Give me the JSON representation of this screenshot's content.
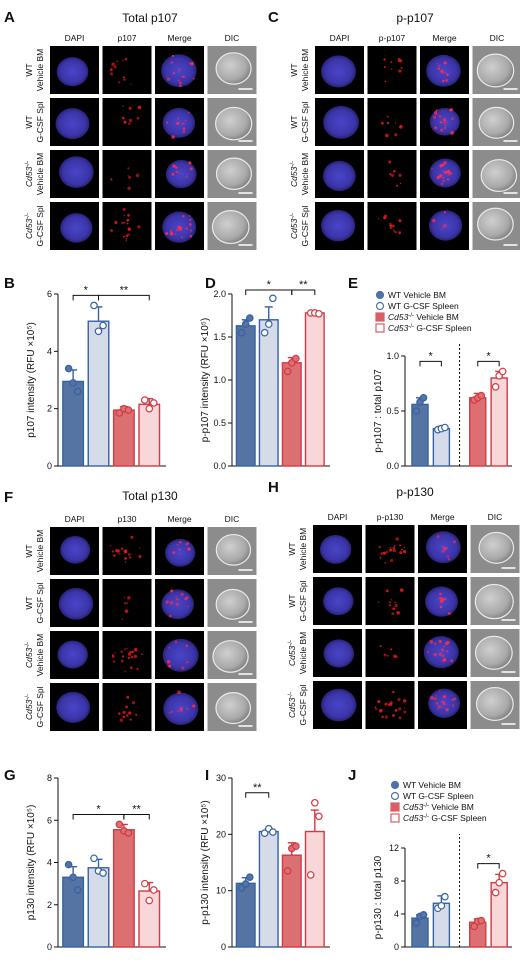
{
  "panel_letters": [
    "A",
    "B",
    "C",
    "D",
    "E",
    "F",
    "G",
    "H",
    "I",
    "J"
  ],
  "image_panels": [
    {
      "letter": "A",
      "title": "Total p107",
      "columns": [
        "DAPI",
        "p107",
        "Merge",
        "DIC"
      ],
      "rows": [
        [
          "WT",
          "Vehicle BM"
        ],
        [
          "WT",
          "G-CSF Spl"
        ],
        [
          "Cd53 -/-",
          "Vehicle BM"
        ],
        [
          "Cd53 -/-",
          "G-CSF Spl"
        ]
      ]
    },
    {
      "letter": "C",
      "title": "p-p107",
      "columns": [
        "DAPI",
        "p-p107",
        "Merge",
        "DIC"
      ],
      "rows": [
        [
          "WT",
          "Vehicle BM"
        ],
        [
          "WT",
          "G-CSF Spl"
        ],
        [
          "Cd53 -/-",
          "Vehicle BM"
        ],
        [
          "Cd53 -/-",
          "G-CSF Spl"
        ]
      ]
    },
    {
      "letter": "F",
      "title": "Total p130",
      "columns": [
        "DAPI",
        "p130",
        "Merge",
        "DIC"
      ],
      "rows": [
        [
          "WT",
          "Vehicle BM"
        ],
        [
          "WT",
          "G-CSF Spl"
        ],
        [
          "Cd53 -/-",
          "Vehicle BM"
        ],
        [
          "Cd53 -/-",
          "G-CSF Spl"
        ]
      ]
    },
    {
      "letter": "H",
      "title": "p-p130",
      "columns": [
        "DAPI",
        "p-p130",
        "Merge",
        "DIC"
      ],
      "rows": [
        [
          "WT",
          "Vehicle BM"
        ],
        [
          "WT",
          "G-CSF Spl"
        ],
        [
          "Cd53 -/-",
          "Vehicle BM"
        ],
        [
          "Cd53 -/-",
          "G-CSF Spl"
        ]
      ]
    }
  ],
  "legend": {
    "E": [
      {
        "text": "WT Vehicle BM",
        "color": "#4f73a8",
        "fill": true
      },
      {
        "text": "WT G-CSF Spleen",
        "color": "#4f73a8",
        "fill": false
      },
      {
        "text": "Cd53-/- Vehicle BM",
        "color": "#d95f66",
        "fill": true
      },
      {
        "text": "Cd53-/- G-CSF Spleen",
        "color": "#d95f66",
        "fill": false
      }
    ],
    "J": [
      {
        "text": "WT Vehicle BM",
        "color": "#4f73a8",
        "fill": true
      },
      {
        "text": "WT G-CSF Spleen",
        "color": "#4f73a8",
        "fill": false
      },
      {
        "text": "Cd53-/- Vehicle BM",
        "color": "#d95f66",
        "fill": true
      },
      {
        "text": "Cd53-/- G-CSF Spleen",
        "color": "#d95f66",
        "fill": false
      }
    ]
  },
  "colors": {
    "wt_bm": "#5573a3",
    "wt_spl": "#d5dbe9",
    "ko_bm": "#db6f72",
    "ko_spl": "#f7d7d8",
    "wt_edge": "#3562a3",
    "ko_edge": "#d23a44"
  },
  "chart_data": [
    {
      "panel": "B",
      "type": "bar",
      "ylabel": "p107 intensity (RFU ×10⁵)",
      "ylim": [
        0,
        6
      ],
      "yticks": [
        0,
        2,
        4,
        6
      ],
      "categories": [
        "WT Vehicle BM",
        "WT G-CSF Spleen",
        "Cd53-/- Vehicle BM",
        "Cd53-/- G-CSF Spleen"
      ],
      "values": [
        2.95,
        5.05,
        1.95,
        2.15
      ],
      "errors": [
        0.4,
        0.5,
        0.12,
        0.2
      ],
      "points": [
        [
          3.4,
          2.9,
          2.6
        ],
        [
          5.6,
          4.7,
          4.9
        ],
        [
          1.85,
          2.0,
          1.95
        ],
        [
          2.3,
          2.0,
          2.2
        ]
      ],
      "significance": [
        {
          "from": 0,
          "to": 1,
          "label": "*"
        },
        {
          "from": 1,
          "to": 3,
          "label": "**"
        }
      ]
    },
    {
      "panel": "D",
      "type": "bar",
      "ylabel": "p-p107 intensity (RFU ×10⁵)",
      "ylim": [
        0,
        2.0
      ],
      "yticks": [
        0.0,
        0.5,
        1.0,
        1.5,
        2.0
      ],
      "categories": [
        "WT Vehicle BM",
        "WT G-CSF Spleen",
        "Cd53-/- Vehicle BM",
        "Cd53-/- G-CSF Spleen"
      ],
      "values": [
        1.63,
        1.7,
        1.2,
        1.78
      ],
      "errors": [
        0.07,
        0.15,
        0.06,
        0.02
      ],
      "points": [
        [
          1.55,
          1.65,
          1.72
        ],
        [
          1.55,
          1.65,
          1.95
        ],
        [
          1.1,
          1.2,
          1.25
        ],
        [
          1.78,
          1.78,
          1.77
        ]
      ],
      "significance": [
        {
          "from": 0,
          "to": 2,
          "label": "*"
        },
        {
          "from": 2,
          "to": 3,
          "label": "**"
        }
      ]
    },
    {
      "panel": "E",
      "type": "bar",
      "ylabel": "p-p107 : total p107",
      "ylim": [
        0,
        1.0
      ],
      "yticks": [
        0.0,
        0.5,
        1.0
      ],
      "categories": [
        "WT Vehicle BM",
        "WT G-CSF Spleen",
        "Cd53-/- Vehicle BM",
        "Cd53-/- G-CSF Spleen"
      ],
      "values": [
        0.56,
        0.34,
        0.62,
        0.8
      ],
      "errors": [
        0.06,
        0.02,
        0.04,
        0.06
      ],
      "points": [
        [
          0.5,
          0.58,
          0.62
        ],
        [
          0.33,
          0.34,
          0.35
        ],
        [
          0.6,
          0.62,
          0.64
        ],
        [
          0.72,
          0.82,
          0.86
        ]
      ],
      "significance": [
        {
          "from": 0,
          "to": 1,
          "label": "*"
        },
        {
          "from": 2,
          "to": 3,
          "label": "*"
        }
      ]
    },
    {
      "panel": "G",
      "type": "bar",
      "ylabel": "p130 intensity (RFU ×10⁵)",
      "ylim": [
        0,
        8
      ],
      "yticks": [
        0,
        2,
        4,
        6,
        8
      ],
      "categories": [
        "WT Vehicle BM",
        "WT G-CSF Spleen",
        "Cd53-/- Vehicle BM",
        "Cd53-/- G-CSF Spleen"
      ],
      "values": [
        3.3,
        3.75,
        5.55,
        2.65
      ],
      "errors": [
        0.5,
        0.4,
        0.25,
        0.4
      ],
      "points": [
        [
          3.9,
          3.3,
          2.7
        ],
        [
          4.2,
          3.6,
          3.5
        ],
        [
          5.8,
          5.5,
          5.4
        ],
        [
          3.0,
          2.2,
          2.7
        ]
      ],
      "significance": [
        {
          "from": 0,
          "to": 2,
          "label": "*"
        },
        {
          "from": 2,
          "to": 3,
          "label": "**"
        }
      ]
    },
    {
      "panel": "I",
      "type": "bar",
      "ylabel": "p-p130 intensity (RFU ×10⁵)",
      "ylim": [
        0,
        30
      ],
      "yticks": [
        0,
        10,
        20,
        30
      ],
      "categories": [
        "WT Vehicle BM",
        "WT G-CSF Spleen",
        "Cd53-/- Vehicle BM",
        "Cd53-/- G-CSF Spleen"
      ],
      "values": [
        11.3,
        20.5,
        16.3,
        20.5
      ],
      "errors": [
        1.0,
        0.5,
        2.2,
        3.8
      ],
      "points": [
        [
          10.5,
          11.2,
          12.4
        ],
        [
          20.2,
          21.0,
          20.4
        ],
        [
          13.5,
          17.5,
          17.9
        ],
        [
          12.8,
          25.6,
          23.2
        ]
      ],
      "significance": [
        {
          "from": 0,
          "to": 1,
          "label": "**"
        }
      ]
    },
    {
      "panel": "J",
      "type": "bar",
      "ylabel": "p-p130 : total p130",
      "ylim": [
        0,
        12
      ],
      "yticks": [
        0,
        4,
        8,
        12
      ],
      "categories": [
        "WT Vehicle BM",
        "WT G-CSF Spleen",
        "Cd53-/- Vehicle BM",
        "Cd53-/- G-CSF Spleen"
      ],
      "values": [
        3.5,
        5.3,
        3.0,
        7.8
      ],
      "errors": [
        0.4,
        0.9,
        0.4,
        1.0
      ],
      "points": [
        [
          2.9,
          3.7,
          3.9
        ],
        [
          4.7,
          5.0,
          6.1
        ],
        [
          2.5,
          3.1,
          3.2
        ],
        [
          6.6,
          7.8,
          8.9
        ]
      ],
      "significance": [
        {
          "from": 2,
          "to": 3,
          "label": "*"
        }
      ]
    }
  ]
}
